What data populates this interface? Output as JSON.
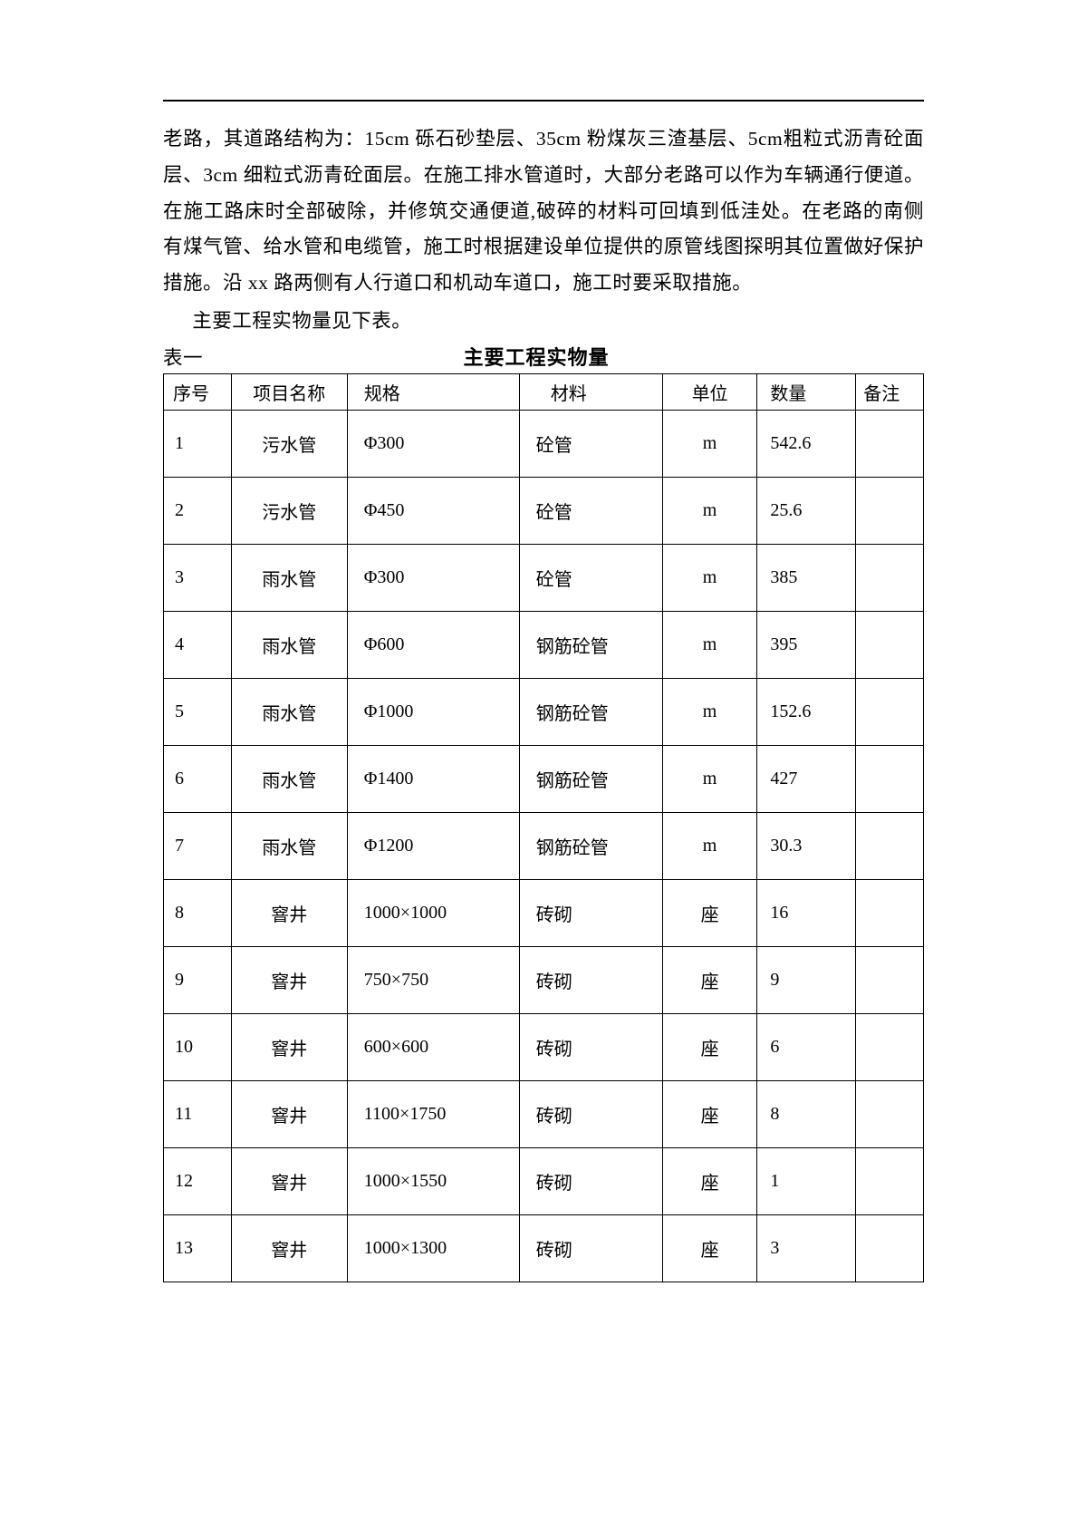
{
  "paragraph": "老路，其道路结构为：15cm 砾石砂垫层、35cm 粉煤灰三渣基层、5cm粗粒式沥青砼面层、3cm 细粒式沥青砼面层。在施工排水管道时，大部分老路可以作为车辆通行便道。在施工路床时全部破除，并修筑交通便道,破碎的材料可回填到低洼处。在老路的南侧有煤气管、给水管和电缆管，施工时根据建设单位提供的原管线图探明其位置做好保护措施。沿 xx 路两侧有人行道口和机动车道口，施工时要采取措施。",
  "sub_line": "主要工程实物量见下表。",
  "table_label": "表一",
  "table_title": "主要工程实物量",
  "columns": {
    "seq": "序号",
    "name": "项目名称",
    "spec": "规格",
    "material": "材料",
    "unit": "单位",
    "qty": "数量",
    "note": "备注"
  },
  "rows": [
    {
      "seq": "1",
      "name": "污水管",
      "spec": "Φ300",
      "material": "砼管",
      "unit": "m",
      "qty": "542.6",
      "note": ""
    },
    {
      "seq": "2",
      "name": "污水管",
      "spec": "Φ450",
      "material": "砼管",
      "unit": "m",
      "qty": "25.6",
      "note": ""
    },
    {
      "seq": "3",
      "name": "雨水管",
      "spec": "Φ300",
      "material": "砼管",
      "unit": "m",
      "qty": "385",
      "note": ""
    },
    {
      "seq": "4",
      "name": "雨水管",
      "spec": "Φ600",
      "material": "钢筋砼管",
      "unit": "m",
      "qty": "395",
      "note": ""
    },
    {
      "seq": "5",
      "name": "雨水管",
      "spec": "Φ1000",
      "material": "钢筋砼管",
      "unit": "m",
      "qty": "152.6",
      "note": ""
    },
    {
      "seq": "6",
      "name": "雨水管",
      "spec": "Φ1400",
      "material": "钢筋砼管",
      "unit": "m",
      "qty": "427",
      "note": ""
    },
    {
      "seq": "7",
      "name": "雨水管",
      "spec": "Φ1200",
      "material": "钢筋砼管",
      "unit": "m",
      "qty": "30.3",
      "note": ""
    },
    {
      "seq": "8",
      "name": "窨井",
      "spec": "1000×1000",
      "material": "砖砌",
      "unit": "座",
      "qty": "16",
      "note": ""
    },
    {
      "seq": "9",
      "name": "窨井",
      "spec": "750×750",
      "material": "砖砌",
      "unit": "座",
      "qty": "9",
      "note": ""
    },
    {
      "seq": "10",
      "name": "窨井",
      "spec": "600×600",
      "material": "砖砌",
      "unit": "座",
      "qty": "6",
      "note": ""
    },
    {
      "seq": "11",
      "name": "窨井",
      "spec": "1100×1750",
      "material": "砖砌",
      "unit": "座",
      "qty": "8",
      "note": ""
    },
    {
      "seq": "12",
      "name": "窨井",
      "spec": "1000×1550",
      "material": "砖砌",
      "unit": "座",
      "qty": "1",
      "note": ""
    },
    {
      "seq": "13",
      "name": "窨井",
      "spec": "1000×1300",
      "material": "砖砌",
      "unit": "座",
      "qty": "3",
      "note": ""
    }
  ]
}
